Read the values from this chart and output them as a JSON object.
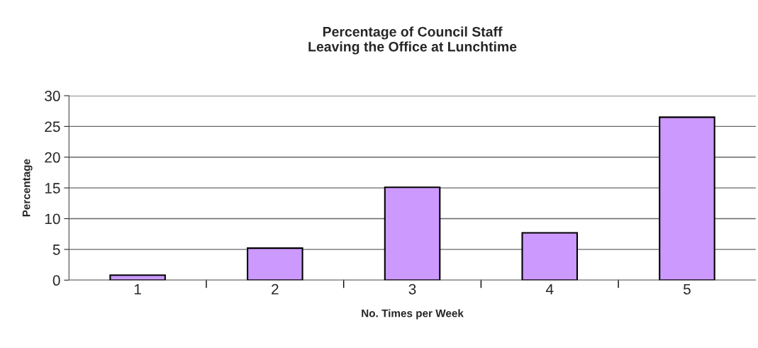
{
  "chart_data": {
    "type": "bar",
    "title": "Percentage of Council Staff\nLeaving the Office at Lunchtime",
    "xlabel": "No. Times per Week",
    "ylabel": "Percentage",
    "categories": [
      "1",
      "2",
      "3",
      "4",
      "5"
    ],
    "values": [
      0.8,
      5.2,
      15.1,
      7.7,
      26.5
    ],
    "color": "#cc99ff",
    "ylim": [
      0,
      30
    ],
    "yticks": [
      0,
      5,
      10,
      15,
      20,
      25,
      30
    ],
    "grid": "y",
    "legend": false
  }
}
